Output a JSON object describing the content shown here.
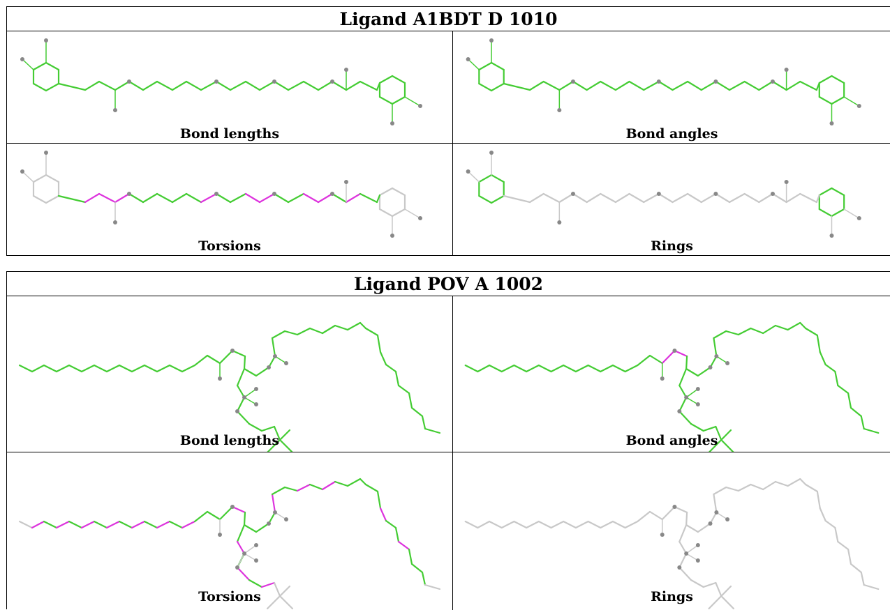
{
  "ligands": [
    {
      "title": "Ligand A1BDT D 1010",
      "panels": [
        "Bond lengths",
        "Bond angles",
        "Torsions",
        "Rings"
      ]
    },
    {
      "title": "Ligand POV A 1002",
      "panels": [
        "Bond lengths",
        "Bond angles",
        "Torsions",
        "Rings"
      ]
    }
  ],
  "colors": {
    "ok": "#44cc33",
    "outlier": "#dd33dd",
    "na": "#c8c8c8",
    "atom": "#888888"
  }
}
